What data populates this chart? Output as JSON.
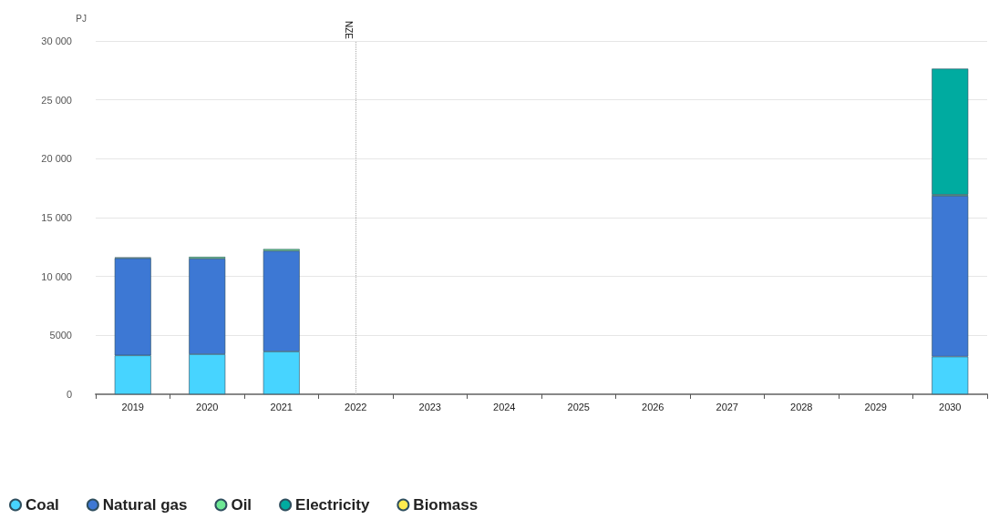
{
  "chart_data": {
    "type": "bar",
    "stacked": true,
    "ylabel": "PJ",
    "categories": [
      "2019",
      "2020",
      "2021",
      "2022",
      "2023",
      "2024",
      "2025",
      "2026",
      "2027",
      "2028",
      "2029",
      "2030"
    ],
    "series": [
      {
        "name": "Coal",
        "color": "#47d4ff",
        "values": [
          3300,
          3400,
          3630,
          null,
          null,
          null,
          null,
          null,
          null,
          null,
          null,
          3200
        ]
      },
      {
        "name": "Natural gas",
        "color": "#3d78d4",
        "values": [
          8250,
          8120,
          8550,
          null,
          null,
          null,
          null,
          null,
          null,
          null,
          null,
          13650
        ]
      },
      {
        "name": "Oil",
        "color": "#6ee895",
        "values": [
          80,
          150,
          150,
          null,
          null,
          null,
          null,
          null,
          null,
          null,
          null,
          100
        ]
      },
      {
        "name": "Electricity",
        "color": "#00aba0",
        "values": [
          0,
          0,
          0,
          null,
          null,
          null,
          null,
          null,
          null,
          null,
          null,
          10700
        ]
      },
      {
        "name": "Biomass",
        "color": "#ffec4f",
        "values": [
          0,
          0,
          0,
          null,
          null,
          null,
          null,
          null,
          null,
          null,
          null,
          0
        ]
      }
    ],
    "ylim": [
      0,
      30000
    ],
    "yticks": [
      0,
      5000,
      {
        "value": 10000,
        "label": "10 000"
      },
      {
        "value": 15000,
        "label": "15 000"
      },
      {
        "value": 20000,
        "label": "20 000"
      },
      {
        "value": 25000,
        "label": "25 000"
      },
      {
        "value": 30000,
        "label": "30 000"
      }
    ],
    "ref_lines": [
      {
        "axis": "x",
        "value": "2022",
        "label": "NZE",
        "line_style": "dotted",
        "color": "#aaaaaa"
      }
    ],
    "grid": "y",
    "legend": "bottom left"
  }
}
